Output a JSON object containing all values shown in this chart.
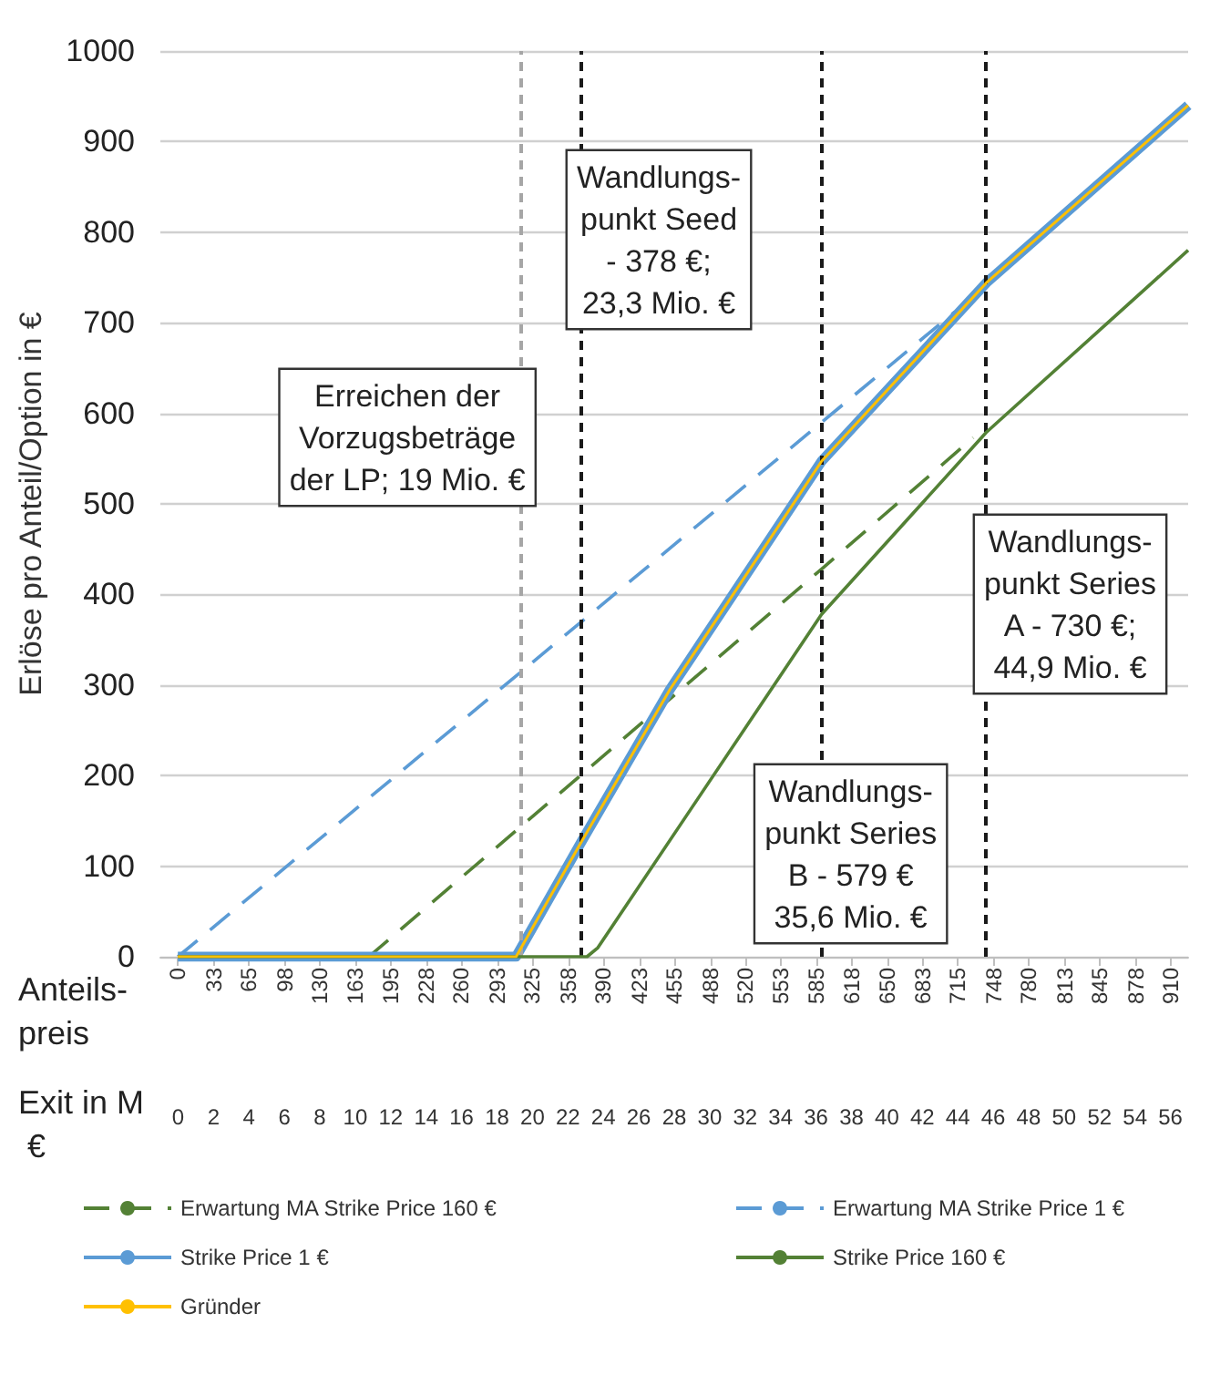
{
  "chart_data": {
    "type": "line",
    "ylabel": "Erlöse pro Anteil/Option in €",
    "xlabel": "Anteils-\npreis",
    "x2label": "Exit in M €",
    "xlim": [
      -16,
      926
    ],
    "xticks": [
      0,
      33,
      65,
      98,
      130,
      163,
      195,
      228,
      260,
      293,
      325,
      358,
      390,
      423,
      455,
      488,
      520,
      553,
      585,
      618,
      650,
      683,
      715,
      748,
      780,
      813,
      845,
      878,
      910
    ],
    "x2lim": [
      -1,
      57
    ],
    "x2ticks": [
      0,
      2,
      4,
      6,
      8,
      10,
      12,
      14,
      16,
      18,
      20,
      22,
      24,
      26,
      28,
      30,
      32,
      34,
      36,
      38,
      40,
      42,
      44,
      46,
      48,
      50,
      52,
      54,
      56
    ],
    "ylim": [
      0,
      1000
    ],
    "yticks": [
      0,
      100,
      200,
      300,
      400,
      500,
      600,
      700,
      800,
      900,
      1000
    ],
    "grid": "y",
    "legend": "bottom",
    "marker": "none",
    "series": [
      {
        "name": "Erwartung MA Strike Price 160 €",
        "color": "#538135",
        "line_style": "dashed",
        "x": [
          175,
          590,
          729
        ],
        "values": [
          0,
          428,
          573
        ]
      },
      {
        "name": "Erwartung MA Strike Price 1 €",
        "color": "#5b9bd5",
        "line_style": "dashed",
        "x": [
          0,
          320,
          590,
          712
        ],
        "values": [
          0,
          320,
          590,
          712
        ]
      },
      {
        "name": "Strike Price 1 €",
        "color": "#5b9bd5",
        "line_style": "solid",
        "x": [
          0,
          310,
          369,
          451,
          590,
          741,
          926
        ],
        "values": [
          0,
          0,
          125,
          295,
          547,
          744,
          940
        ]
      },
      {
        "name": "Strike Price 160 €",
        "color": "#538135",
        "line_style": "solid",
        "x": [
          0,
          375,
          385,
          590,
          741,
          926
        ],
        "values": [
          0,
          0,
          10,
          378,
          579,
          780
        ]
      },
      {
        "name": "Gründer",
        "color": "#ffc000",
        "line_style": "solid",
        "x": [
          0,
          310,
          369,
          451,
          590,
          741,
          926
        ],
        "values": [
          0,
          0,
          125,
          295,
          547,
          744,
          940
        ]
      }
    ],
    "ref_lines": [
      {
        "axis": "x",
        "value": 314,
        "label": "Erreichen der\nVorzugsbeträge\nder LP; 19 Mio. €",
        "color": "#a6a6a6",
        "line_style": "dashed"
      },
      {
        "axis": "x",
        "value": 369,
        "label": "Wandlungs-\npunkt Seed\n- 378 €;\n23,3 Mio. €",
        "color": "#1a1a1a",
        "line_style": "dashed"
      },
      {
        "axis": "x",
        "value": 590,
        "label": "Wandlungs-\npunkt Series\nB - 579 €\n35,6 Mio. €",
        "color": "#1a1a1a",
        "line_style": "dashed"
      },
      {
        "axis": "x",
        "value": 741,
        "label": "Wandlungs-\npunkt Series\nA - 730 €;\n44,9 Mio. €",
        "color": "#1a1a1a",
        "line_style": "dashed"
      }
    ]
  }
}
